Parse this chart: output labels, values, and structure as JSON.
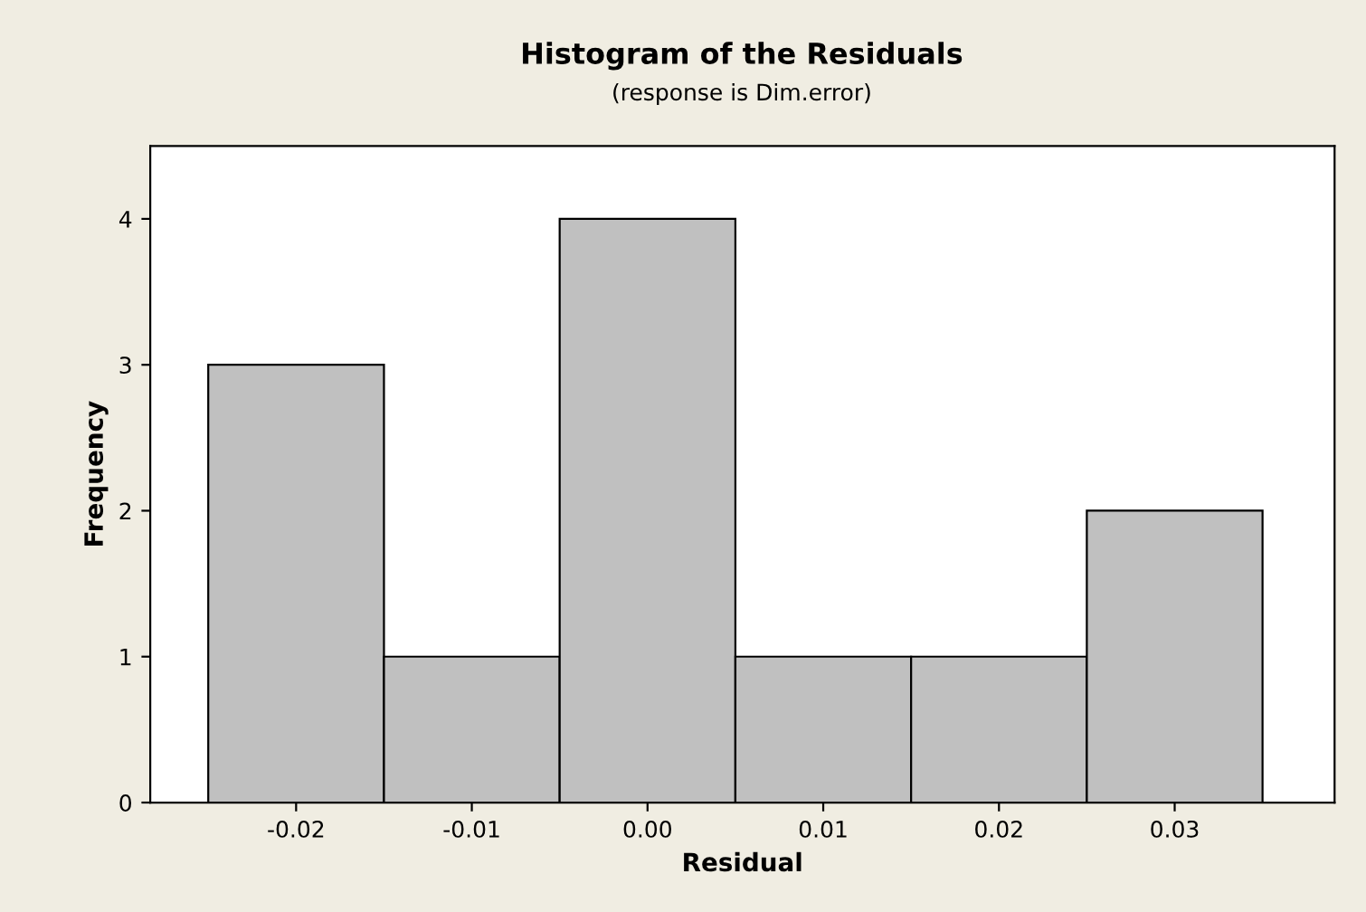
{
  "chart_data": {
    "type": "histogram",
    "title": "Histogram of the Residuals",
    "subtitle": "(response is Dim.error)",
    "xlabel": "Residual",
    "ylabel": "Frequency",
    "bins": [
      -0.025,
      -0.015,
      -0.005,
      0.005,
      0.015,
      0.025,
      0.035
    ],
    "values": [
      3,
      1,
      4,
      1,
      1,
      2
    ],
    "color": "#c0c0c0",
    "xlim": [
      -0.0283,
      0.0391
    ],
    "xticks": [
      {
        "value": -0.02,
        "label": "-0.02"
      },
      {
        "value": -0.01,
        "label": "-0.01"
      },
      {
        "value": 0,
        "label": "0.00"
      },
      {
        "value": 0.01,
        "label": "0.01"
      },
      {
        "value": 0.02,
        "label": "0.02"
      },
      {
        "value": 0.03,
        "label": "0.03"
      }
    ],
    "ylim": [
      0,
      4.5
    ],
    "yticks": [
      0,
      1,
      2,
      3,
      4
    ],
    "grid": false
  }
}
